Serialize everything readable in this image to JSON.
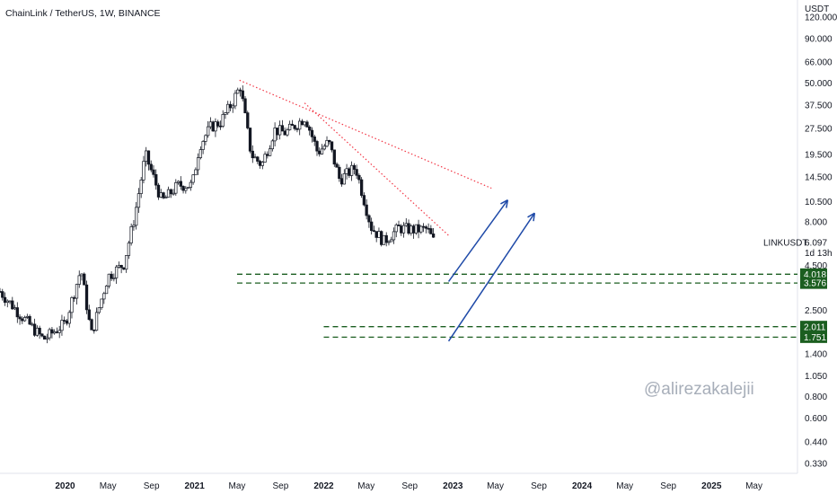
{
  "header": {
    "title": "ChainLink / TetherUS, 1W, BINANCE"
  },
  "watermark": "@alirezakalejii",
  "chart_data": {
    "type": "candlestick",
    "title": "ChainLink / TetherUS, 1W, BINANCE",
    "symbol": "LINKUSDT",
    "exchange": "BINANCE",
    "timeframe": "1W",
    "y_scale": "log",
    "y_unit": "USDT",
    "y_ticks": [
      "120.000",
      "90.000",
      "66.000",
      "50.000",
      "37.500",
      "27.500",
      "19.500",
      "14.500",
      "10.500",
      "8.000",
      "4.500",
      "2.500",
      "1.400",
      "1.050",
      "0.800",
      "0.600",
      "0.440",
      "0.330"
    ],
    "x_ticks": [
      {
        "date": "2020-01",
        "label": "2020",
        "bold": true
      },
      {
        "date": "2020-05",
        "label": "May"
      },
      {
        "date": "2020-09",
        "label": "Sep"
      },
      {
        "date": "2021-01",
        "label": "2021",
        "bold": true
      },
      {
        "date": "2021-05",
        "label": "May"
      },
      {
        "date": "2021-09",
        "label": "Sep"
      },
      {
        "date": "2022-01",
        "label": "2022",
        "bold": true
      },
      {
        "date": "2022-05",
        "label": "May"
      },
      {
        "date": "2022-09",
        "label": "Sep"
      },
      {
        "date": "2023-01",
        "label": "2023",
        "bold": true
      },
      {
        "date": "2023-05",
        "label": "May"
      },
      {
        "date": "2023-09",
        "label": "Sep"
      },
      {
        "date": "2024-01",
        "label": "2024",
        "bold": true
      },
      {
        "date": "2024-05",
        "label": "May"
      },
      {
        "date": "2024-09",
        "label": "Sep"
      },
      {
        "date": "2025-01",
        "label": "2025",
        "bold": true
      },
      {
        "date": "2025-05",
        "label": "May"
      }
    ],
    "x_range": [
      "2019-07-01",
      "2025-09-01"
    ],
    "y_range": [
      0.29,
      150
    ],
    "last_price": {
      "label": "LINKUSDT",
      "value": "6.097",
      "countdown": "1d 13h"
    },
    "support_zones": [
      {
        "levels": [
          "4.018",
          "3.576"
        ],
        "start": "2021-05-01",
        "color": "#1b5e20"
      },
      {
        "levels": [
          "2.011",
          "1.751"
        ],
        "start": "2022-01-01",
        "color": "#1b5e20"
      }
    ],
    "trendlines": [
      {
        "from": [
          "2021-05-08",
          52
        ],
        "to": [
          "2023-04-20",
          12.5
        ],
        "color": "#f23645",
        "style": "dotted"
      },
      {
        "from": [
          "2021-11-08",
          38.5
        ],
        "to": [
          "2022-12-20",
          6.7
        ],
        "color": "#f23645",
        "style": "dotted"
      }
    ],
    "projection_arrows": [
      {
        "from": [
          "2022-12-20",
          3.65
        ],
        "to": [
          "2023-06-05",
          10.7
        ],
        "color": "#1f4aa8"
      },
      {
        "from": [
          "2022-12-20",
          1.66
        ],
        "to": [
          "2023-08-20",
          9.0
        ],
        "color": "#1f4aa8"
      }
    ],
    "series": [
      {
        "name": "LINKUSDT",
        "points": [
          [
            "2019-07-01",
            3.2
          ],
          [
            "2019-09-01",
            2.3
          ],
          [
            "2019-11-01",
            1.7
          ],
          [
            "2020-01-01",
            2.1
          ],
          [
            "2020-02-15",
            4.3
          ],
          [
            "2020-03-15",
            1.8
          ],
          [
            "2020-05-01",
            3.9
          ],
          [
            "2020-06-15",
            4.6
          ],
          [
            "2020-07-15",
            8.5
          ],
          [
            "2020-08-15",
            19.5
          ],
          [
            "2020-10-01",
            10.5
          ],
          [
            "2020-11-15",
            13.0
          ],
          [
            "2020-12-25",
            13.0
          ],
          [
            "2021-01-15",
            22.0
          ],
          [
            "2021-02-15",
            28.0
          ],
          [
            "2021-03-15",
            30.0
          ],
          [
            "2021-04-15",
            38.0
          ],
          [
            "2021-05-10",
            48.0
          ],
          [
            "2021-06-10",
            19.5
          ],
          [
            "2021-07-10",
            17.0
          ],
          [
            "2021-08-15",
            27.0
          ],
          [
            "2021-09-15",
            26.0
          ],
          [
            "2021-10-15",
            29.0
          ],
          [
            "2021-11-10",
            32.0
          ],
          [
            "2021-12-15",
            20.0
          ],
          [
            "2022-01-15",
            23.0
          ],
          [
            "2022-02-15",
            14.0
          ],
          [
            "2022-04-01",
            16.5
          ],
          [
            "2022-05-15",
            7.5
          ],
          [
            "2022-06-20",
            6.2
          ],
          [
            "2022-08-01",
            7.4
          ],
          [
            "2022-09-15",
            7.2
          ],
          [
            "2022-10-20",
            7.3
          ],
          [
            "2022-11-10",
            6.1
          ]
        ]
      }
    ]
  }
}
